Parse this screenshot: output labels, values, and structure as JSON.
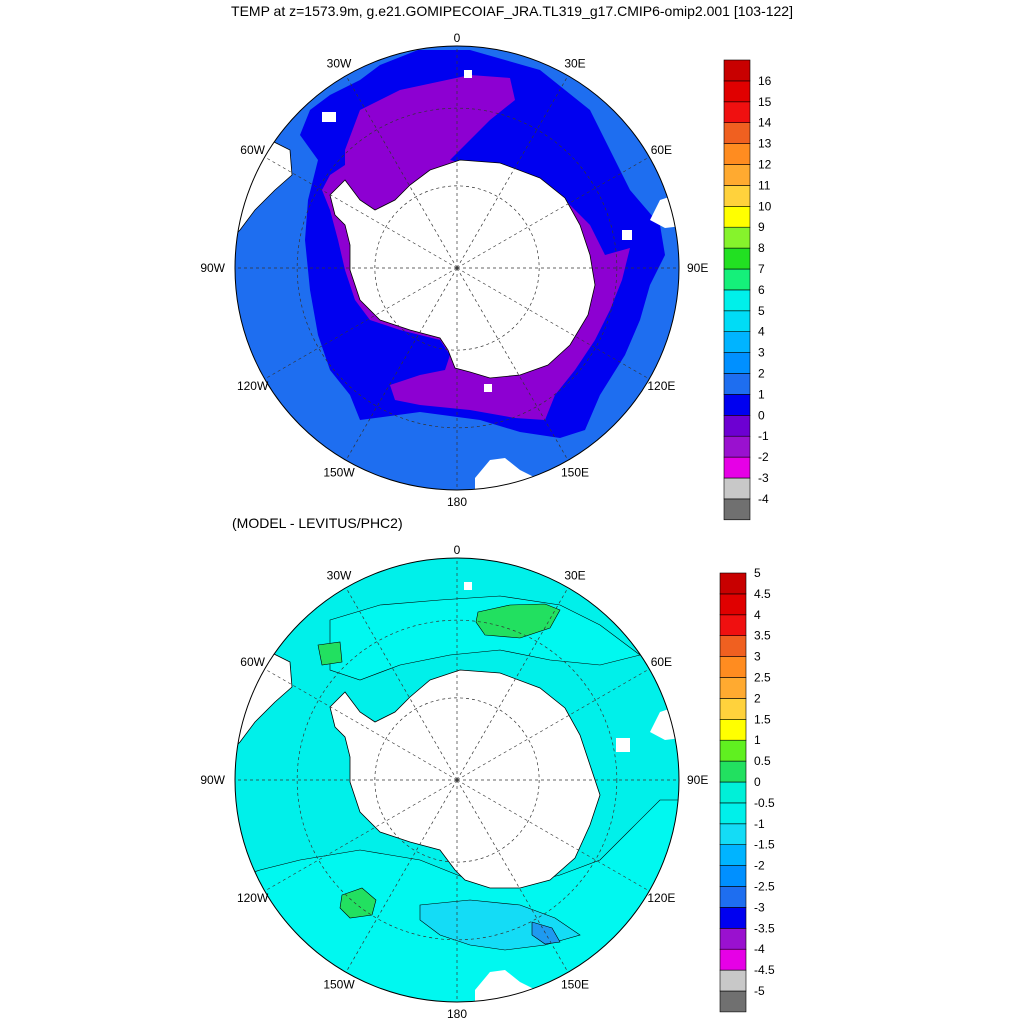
{
  "title": "TEMP at z=1573.9m, g.e21.GOMIPECOIAF_JRA.TL319_g17.CMIP6-omip2.001 [103-122]",
  "subtitle": "(MODEL - LEVITUS/PHC2)",
  "panels": [
    {
      "id": "temp",
      "lon_labels": [
        "0",
        "30E",
        "60E",
        "90E",
        "120E",
        "150E",
        "180",
        "150W",
        "120W",
        "90W",
        "60W",
        "30W"
      ],
      "colorbar": {
        "labels": [
          "-4",
          "-3",
          "-2",
          "-1",
          "0",
          "1",
          "2",
          "3",
          "4",
          "5",
          "6",
          "7",
          "8",
          "9",
          "10",
          "11",
          "12",
          "13",
          "14",
          "15",
          "16"
        ],
        "colors": [
          "#707070",
          "#c8c8c8",
          "#e600e6",
          "#9a11cf",
          "#6d00d2",
          "#0000f0",
          "#1e6ef0",
          "#0090ff",
          "#00b4ff",
          "#00dcf6",
          "#00f0ea",
          "#15f07a",
          "#22e022",
          "#86f32c",
          "#ffff00",
          "#ffd23c",
          "#ffaa30",
          "#ff8c20",
          "#f06020",
          "#f01010",
          "#e00000",
          "#c80000"
        ]
      }
    },
    {
      "id": "diff",
      "lon_labels": [
        "0",
        "30E",
        "60E",
        "90E",
        "120E",
        "150E",
        "180",
        "150W",
        "120W",
        "90W",
        "60W",
        "30W"
      ],
      "colorbar": {
        "labels": [
          "-5",
          "-4.5",
          "-4",
          "-3.5",
          "-3",
          "-2.5",
          "-2",
          "-1.5",
          "-1",
          "-0.5",
          "0",
          "0.5",
          "1",
          "1.5",
          "2",
          "2.5",
          "3",
          "3.5",
          "4",
          "4.5",
          "5"
        ],
        "colors": [
          "#707070",
          "#c8c8c8",
          "#e600e6",
          "#9a11cf",
          "#0000f0",
          "#1e6ef0",
          "#0090ff",
          "#00b4ff",
          "#14dcf6",
          "#00f0ea",
          "#00f0d8",
          "#22e060",
          "#60f020",
          "#ffff00",
          "#ffd23c",
          "#ffaa30",
          "#ff8c20",
          "#f06020",
          "#f01010",
          "#e00000",
          "#c80000"
        ]
      }
    }
  ],
  "colors": {
    "land": "#ffffff",
    "temp_outer": "#1e6ef0",
    "temp_mid": "#0000f0",
    "temp_inner": "#8d00d2",
    "diff_bg": "#00f0ea",
    "diff_light": "#14dcf6",
    "diff_green": "#22e060",
    "diff_blue": "#1e6ef0"
  }
}
